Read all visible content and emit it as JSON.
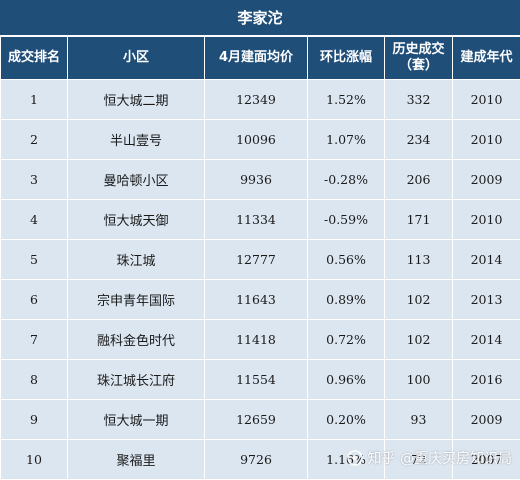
{
  "title": "李家沱",
  "colors": {
    "header_bg": "#1f4e79",
    "header_text": "#ffffff",
    "row_bg": "#dce6f1"
  },
  "columns": [
    "成交排名",
    "小区",
    "4月建面均价",
    "环比涨幅",
    "历史成交\n（套）",
    "建成年代"
  ],
  "rows": [
    [
      "1",
      "恒大城二期",
      "12349",
      "1.52%",
      "332",
      "2010"
    ],
    [
      "2",
      "半山壹号",
      "10096",
      "1.07%",
      "234",
      "2010"
    ],
    [
      "3",
      "曼哈顿小区",
      "9936",
      "-0.28%",
      "206",
      "2009"
    ],
    [
      "4",
      "恒大城天御",
      "11334",
      "-0.59%",
      "171",
      "2010"
    ],
    [
      "5",
      "珠江城",
      "12777",
      "0.56%",
      "113",
      "2014"
    ],
    [
      "6",
      "宗申青年国际",
      "11643",
      "0.89%",
      "102",
      "2013"
    ],
    [
      "7",
      "融科金色时代",
      "11418",
      "0.72%",
      "102",
      "2014"
    ],
    [
      "8",
      "珠江城长江府",
      "11554",
      "0.96%",
      "100",
      "2016"
    ],
    [
      "9",
      "恒大城一期",
      "12659",
      "0.20%",
      "93",
      "2009"
    ],
    [
      "10",
      "聚福里",
      "9726",
      "1.16%",
      "72",
      "2007"
    ]
  ],
  "watermark": {
    "icon": "zhihu-logo-icon",
    "text": "知乎 @重庆买房知识局"
  }
}
